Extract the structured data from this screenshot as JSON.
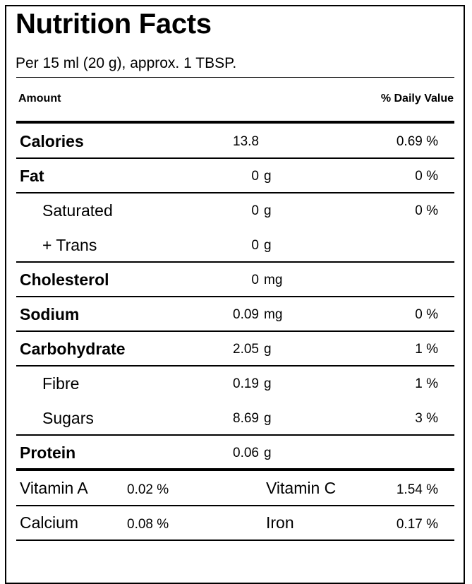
{
  "title": "Nutrition Facts",
  "serving": "Per 15 ml (20 g), approx. 1 TBSP.",
  "header": {
    "amount": "Amount",
    "daily_value": "% Daily Value"
  },
  "nutrients": [
    {
      "name": "Calories",
      "amount": "13.8",
      "unit": "",
      "dv": "0.69 %"
    },
    {
      "name": "Fat",
      "amount": "0",
      "unit": "g",
      "dv": "0 %"
    },
    {
      "name": "Saturated",
      "amount": "0",
      "unit": "g",
      "dv": "0 %"
    },
    {
      "name": "+ Trans",
      "amount": "0",
      "unit": "g",
      "dv": ""
    },
    {
      "name": "Cholesterol",
      "amount": "0",
      "unit": "mg",
      "dv": ""
    },
    {
      "name": "Sodium",
      "amount": "0.09",
      "unit": "mg",
      "dv": "0 %"
    },
    {
      "name": "Carbohydrate",
      "amount": "2.05",
      "unit": "g",
      "dv": "1 %"
    },
    {
      "name": "Fibre",
      "amount": "0.19",
      "unit": "g",
      "dv": "1 %"
    },
    {
      "name": "Sugars",
      "amount": "8.69",
      "unit": "g",
      "dv": "3 %"
    },
    {
      "name": "Protein",
      "amount": "0.06",
      "unit": "g",
      "dv": ""
    }
  ],
  "vitamins": [
    {
      "left_name": "Vitamin A",
      "left_value": "0.02 %",
      "right_name": "Vitamin C",
      "right_value": "1.54 %"
    },
    {
      "left_name": "Calcium",
      "left_value": "0.08 %",
      "right_name": "Iron",
      "right_value": "0.17 %"
    }
  ]
}
